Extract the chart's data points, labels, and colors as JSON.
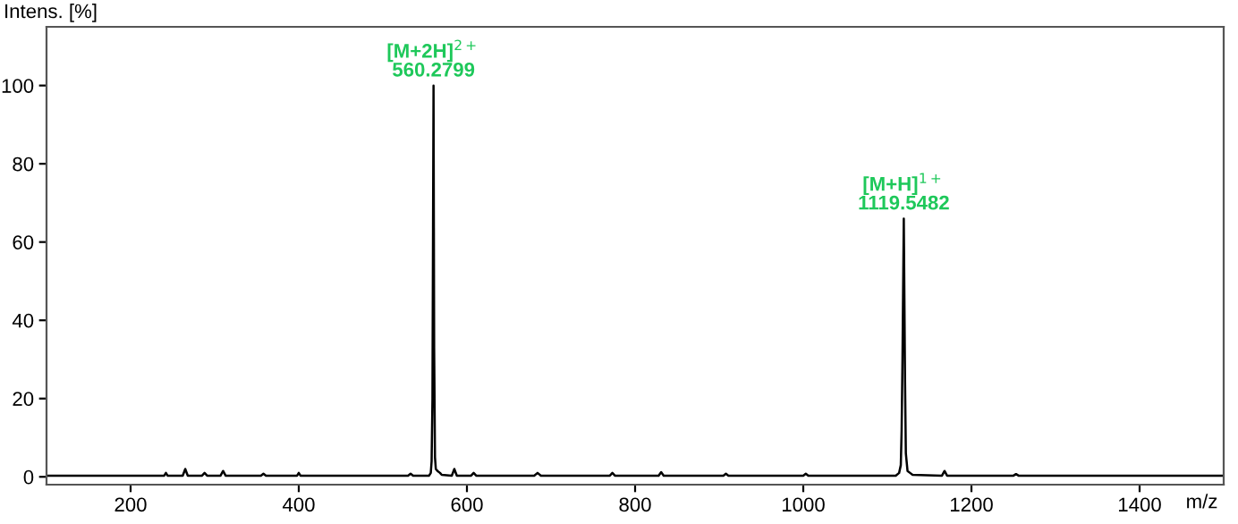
{
  "chart_data": {
    "type": "line",
    "xlabel": "m/z",
    "ylabel": "Intens. [%]",
    "series": [
      {
        "color": "#000000",
        "x": [
          100,
          240,
          242,
          244,
          262,
          265,
          268,
          285,
          288,
          291,
          307,
          310,
          313,
          355,
          358,
          361,
          398,
          400,
          402,
          530,
          533,
          536,
          555,
          557,
          558,
          559,
          560.28,
          561,
          562,
          563,
          565,
          568,
          570,
          582,
          585,
          588,
          605,
          608,
          611,
          680,
          684,
          688,
          770,
          773,
          776,
          828,
          831,
          834,
          905,
          908,
          911,
          1000,
          1003,
          1006,
          1110,
          1114,
          1116,
          1117,
          1118,
          1119.55,
          1121,
          1122,
          1124,
          1127,
          1130,
          1165,
          1168,
          1171,
          1250,
          1253,
          1256,
          1500
        ],
        "values": [
          0.3,
          0.3,
          1,
          0.3,
          0.3,
          2,
          0.3,
          0.3,
          1,
          0.3,
          0.3,
          1.5,
          0.3,
          0.3,
          0.8,
          0.3,
          0.3,
          1,
          0.3,
          0.3,
          0.8,
          0.3,
          0.3,
          1,
          4,
          20,
          100,
          33,
          5,
          2,
          1.5,
          1,
          0.5,
          0.3,
          2,
          0.3,
          0.3,
          1,
          0.3,
          0.3,
          1,
          0.3,
          0.3,
          1,
          0.3,
          0.3,
          1.2,
          0.3,
          0.3,
          0.8,
          0.3,
          0.3,
          0.8,
          0.3,
          0.3,
          1,
          3,
          12,
          30,
          66,
          25,
          6,
          1.5,
          1,
          0.5,
          0.3,
          1.5,
          0.3,
          0.3,
          0.7,
          0.3,
          0.3
        ]
      }
    ],
    "xlim": [
      100,
      1500
    ],
    "ylim": [
      -2,
      115
    ],
    "xticks": [
      200,
      400,
      600,
      800,
      1000,
      1200,
      1400
    ],
    "yticks": [
      0,
      20,
      40,
      60,
      80,
      100
    ],
    "grid": false,
    "legend": false,
    "marker": "none",
    "line_style": "solid",
    "annotations": [
      {
        "text": "[M+2H]$^{2+}$\n560.2799",
        "x": 560.28,
        "y": 100
      },
      {
        "text": "[M+H]$^{1+}$\n1119.5482",
        "x": 1119.55,
        "y": 66
      }
    ]
  }
}
